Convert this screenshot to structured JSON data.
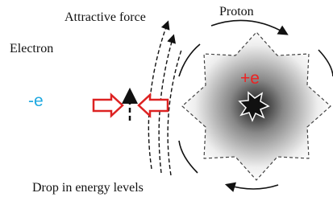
{
  "labels": {
    "attractive_force": "Attractive force",
    "proton": "Proton",
    "electron": "Electron",
    "electron_charge": "-e",
    "proton_charge": "+e",
    "drop": "Drop in energy levels"
  }
}
